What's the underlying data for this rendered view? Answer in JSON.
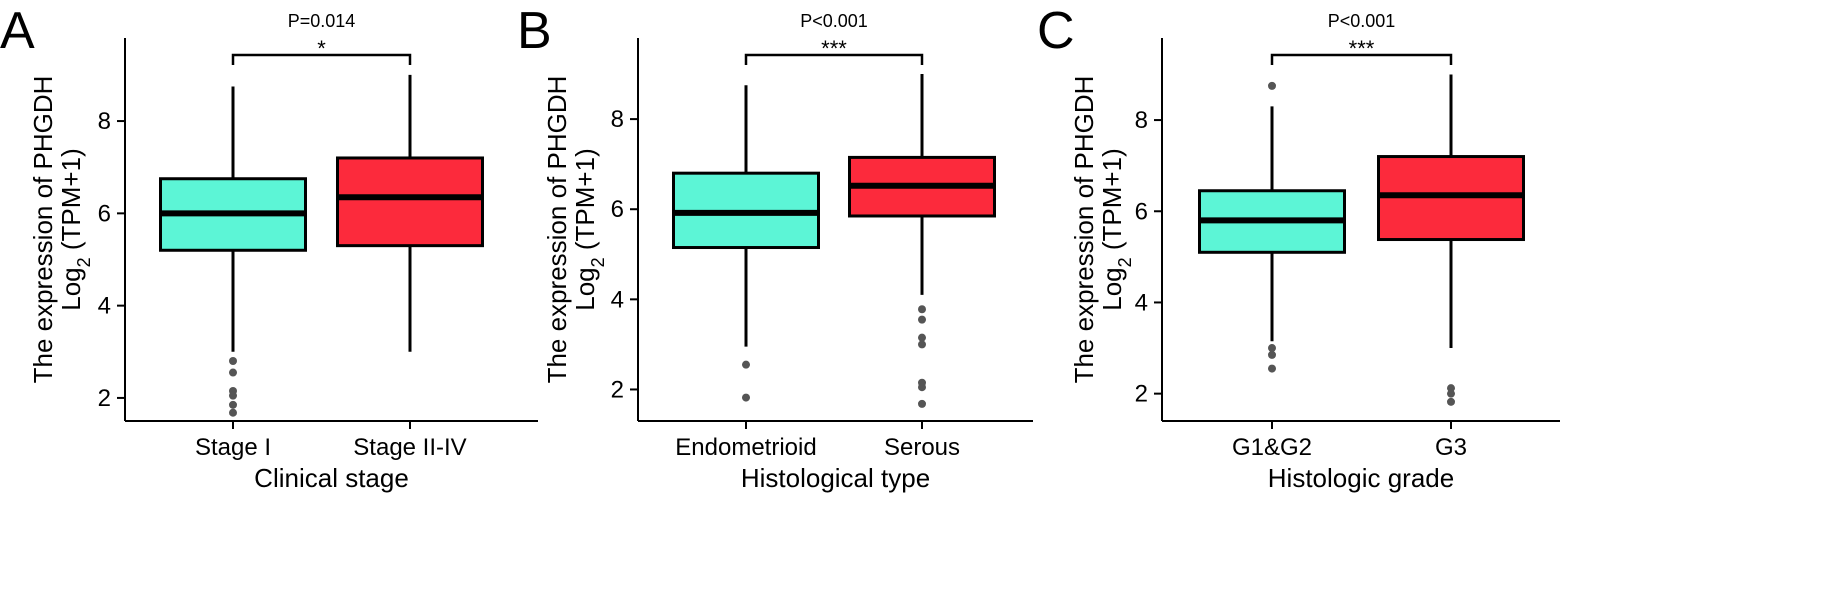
{
  "colors": {
    "group1": "#5cf5d6",
    "group2": "#fc2a3c",
    "outlier": "#555555"
  },
  "ylabel_line1": "The expression of PHGDH",
  "ylabel_line2_prefix": "Log",
  "ylabel_line2_sub": "2",
  "ylabel_line2_suffix": " (TPM+1)",
  "chart_data": [
    {
      "type": "box",
      "panel": "A",
      "xlabel": "Clinical stage",
      "ylim": [
        1.5,
        9.8
      ],
      "yticks": [
        2,
        4,
        6,
        8
      ],
      "pvalue": "P=0.014",
      "significance": "*",
      "categories": [
        "Stage I",
        "Stage II-IV"
      ],
      "boxes": [
        {
          "category": "Stage I",
          "whisker_low": 3.0,
          "q1": 5.2,
          "median": 6.0,
          "q3": 6.75,
          "whisker_high": 8.75,
          "outliers": [
            2.8,
            2.55,
            2.15,
            2.05,
            1.85,
            1.68
          ]
        },
        {
          "category": "Stage II-IV",
          "whisker_low": 3.0,
          "q1": 5.3,
          "median": 6.35,
          "q3": 7.2,
          "whisker_high": 9.0,
          "outliers": []
        }
      ]
    },
    {
      "type": "box",
      "panel": "B",
      "xlabel": "Histological type",
      "ylim": [
        1.3,
        9.8
      ],
      "yticks": [
        2,
        4,
        6,
        8
      ],
      "pvalue": "P<0.001",
      "significance": "***",
      "categories": [
        "Endometrioid",
        "Serous"
      ],
      "boxes": [
        {
          "category": "Endometrioid",
          "whisker_low": 2.95,
          "q1": 5.15,
          "median": 5.92,
          "q3": 6.8,
          "whisker_high": 8.75,
          "outliers": [
            2.55,
            1.82
          ]
        },
        {
          "category": "Serous",
          "whisker_low": 4.1,
          "q1": 5.85,
          "median": 6.52,
          "q3": 7.15,
          "whisker_high": 9.0,
          "outliers": [
            3.78,
            3.55,
            3.15,
            3.0,
            2.15,
            2.05,
            1.68
          ]
        }
      ]
    },
    {
      "type": "box",
      "panel": "C",
      "xlabel": "Histologic grade",
      "ylim": [
        1.4,
        9.8
      ],
      "yticks": [
        2,
        4,
        6,
        8
      ],
      "pvalue": "P<0.001",
      "significance": "***",
      "categories": [
        "G1&G2",
        "G3"
      ],
      "boxes": [
        {
          "category": "G1&G2",
          "whisker_low": 3.15,
          "q1": 5.1,
          "median": 5.8,
          "q3": 6.45,
          "whisker_high": 8.3,
          "outliers": [
            8.75,
            3.0,
            2.85,
            2.55
          ]
        },
        {
          "category": "G3",
          "whisker_low": 3.0,
          "q1": 5.38,
          "median": 6.35,
          "q3": 7.2,
          "whisker_high": 9.0,
          "outliers": [
            2.12,
            2.0,
            1.82
          ]
        }
      ]
    }
  ]
}
